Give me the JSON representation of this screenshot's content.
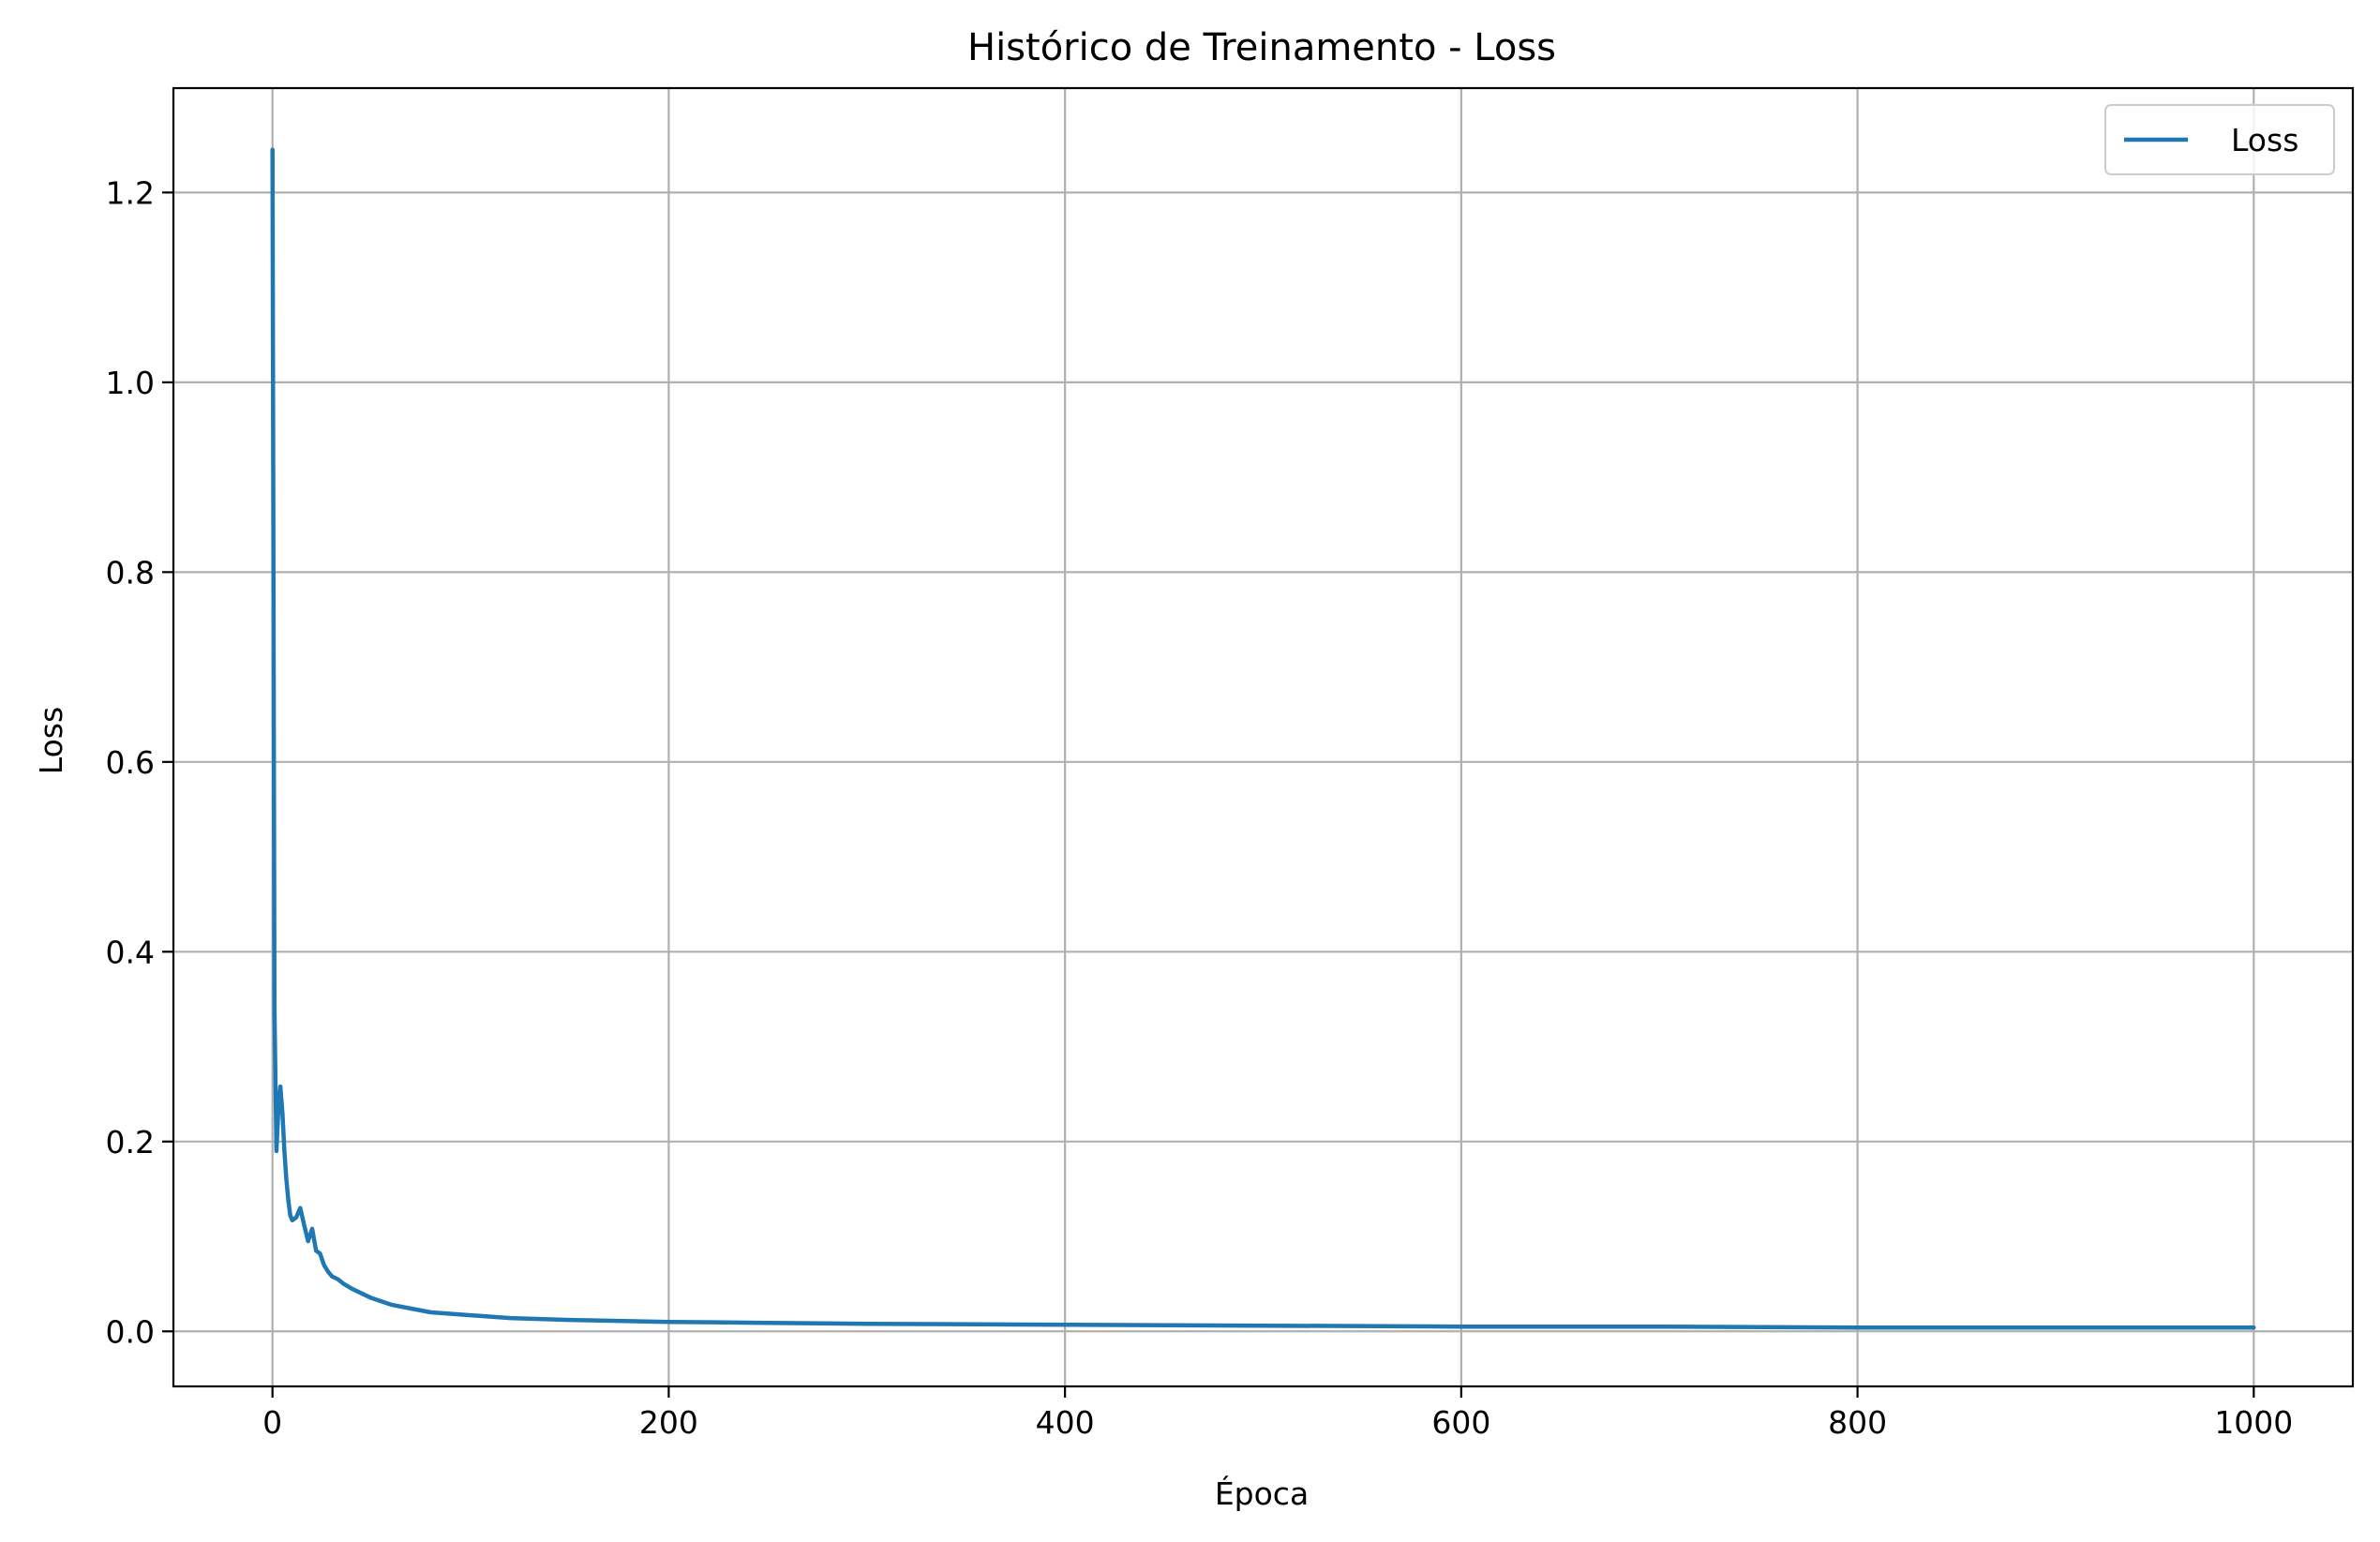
{
  "chart_data": {
    "type": "line",
    "title": "Histórico de Treinamento - Loss",
    "xlabel": "Época",
    "ylabel": "Loss",
    "xlim": [
      -50,
      1050
    ],
    "ylim": [
      -0.058,
      1.31
    ],
    "xticks": [
      0,
      200,
      400,
      600,
      800,
      1000
    ],
    "xtick_labels": [
      "0",
      "200",
      "400",
      "600",
      "800",
      "1000"
    ],
    "yticks": [
      0.0,
      0.2,
      0.4,
      0.6,
      0.8,
      1.0,
      1.2
    ],
    "ytick_labels": [
      "0.0",
      "0.2",
      "0.4",
      "0.6",
      "0.8",
      "1.0",
      "1.2"
    ],
    "grid": true,
    "legend_position": "top-right",
    "colors": {
      "series": "#1f77b4",
      "grid": "#b0b0b0"
    },
    "series": [
      {
        "name": "Loss",
        "x": [
          0,
          1,
          2,
          3,
          4,
          5,
          6,
          7,
          8,
          9,
          10,
          12,
          14,
          16,
          18,
          20,
          22,
          24,
          26,
          28,
          30,
          33,
          36,
          40,
          45,
          50,
          60,
          70,
          80,
          100,
          120,
          150,
          200,
          250,
          300,
          400,
          500,
          600,
          700,
          800,
          900,
          1000
        ],
        "y": [
          1.245,
          0.34,
          0.19,
          0.235,
          0.258,
          0.23,
          0.19,
          0.16,
          0.138,
          0.122,
          0.117,
          0.12,
          0.13,
          0.112,
          0.095,
          0.108,
          0.085,
          0.082,
          0.07,
          0.063,
          0.058,
          0.055,
          0.05,
          0.045,
          0.04,
          0.035,
          0.028,
          0.024,
          0.02,
          0.017,
          0.014,
          0.012,
          0.01,
          0.009,
          0.008,
          0.007,
          0.006,
          0.005,
          0.005,
          0.004,
          0.004,
          0.004
        ]
      }
    ]
  }
}
